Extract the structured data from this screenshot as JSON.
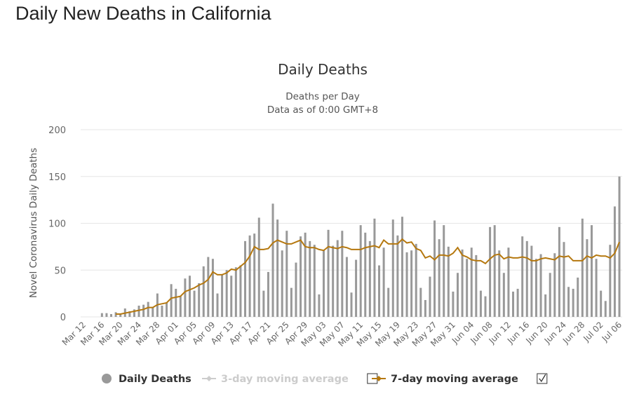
{
  "header": {
    "title": "Daily New Deaths in California"
  },
  "chart_data": {
    "type": "bar",
    "title": "Daily Deaths",
    "subtitle": [
      "Deaths per Day",
      "Data as of 0:00 GMT+8"
    ],
    "y_label": "Novel Coronavirus Daily Deaths",
    "ylim": [
      0,
      200
    ],
    "yticks": [
      0,
      50,
      100,
      150,
      200
    ],
    "grid": true,
    "categories": [
      "Mar 12",
      null,
      null,
      null,
      "Mar 16",
      null,
      null,
      null,
      "Mar 20",
      null,
      null,
      null,
      "Mar 24",
      null,
      null,
      null,
      "Mar 28",
      null,
      null,
      null,
      "Apr 01",
      null,
      null,
      null,
      "Apr 05",
      null,
      null,
      null,
      "Apr 09",
      null,
      null,
      null,
      "Apr 13",
      null,
      null,
      null,
      "Apr 17",
      null,
      null,
      null,
      "Apr 21",
      null,
      null,
      null,
      "Apr 25",
      null,
      null,
      null,
      "Apr 29",
      null,
      null,
      null,
      "May 03",
      null,
      null,
      null,
      "May 07",
      null,
      null,
      null,
      "May 11",
      null,
      null,
      null,
      "May 15",
      null,
      null,
      null,
      "May 19",
      null,
      null,
      null,
      "May 23",
      null,
      null,
      null,
      "May 27",
      null,
      null,
      null,
      "May 31",
      null,
      null,
      null,
      "Jun 04",
      null,
      null,
      null,
      "Jun 08",
      null,
      null,
      null,
      "Jun 12",
      null,
      null,
      null,
      "Jun 16",
      null,
      null,
      null,
      "Jun 20",
      null,
      null,
      null,
      "Jun 24",
      null,
      null,
      null,
      "Jun 28",
      null,
      null,
      null,
      "Jul 02",
      null,
      null,
      null,
      "Jul 06"
    ],
    "series": [
      {
        "name": "Daily Deaths",
        "type": "bar",
        "color": "#999999",
        "values": [
          0,
          0,
          0,
          0,
          4,
          4,
          3,
          5,
          3,
          9,
          6,
          8,
          12,
          13,
          16,
          10,
          25,
          12,
          15,
          35,
          30,
          22,
          41,
          44,
          28,
          36,
          54,
          64,
          62,
          25,
          45,
          50,
          44,
          53,
          55,
          81,
          87,
          89,
          106,
          28,
          48,
          121,
          104,
          71,
          92,
          31,
          58,
          86,
          90,
          81,
          77,
          24,
          71,
          93,
          76,
          82,
          92,
          64,
          26,
          61,
          98,
          90,
          81,
          105,
          55,
          74,
          31,
          104,
          87,
          107,
          69,
          71,
          78,
          31,
          18,
          43,
          103,
          83,
          98,
          75,
          27,
          47,
          72,
          62,
          74,
          66,
          28,
          22,
          96,
          98,
          71,
          47,
          74,
          27,
          30,
          86,
          81,
          76,
          62,
          67,
          24,
          47,
          68,
          96,
          80,
          32,
          30,
          42,
          105,
          83,
          98,
          62,
          28,
          17,
          77,
          118,
          150
        ]
      },
      {
        "name": "3-day moving average",
        "type": "line",
        "color": "#cccccc",
        "visible": false
      },
      {
        "name": "7-day moving average",
        "type": "line",
        "color": "#b5780f",
        "visible": true,
        "values": [
          null,
          null,
          null,
          null,
          null,
          null,
          null,
          3,
          3,
          4,
          5,
          6,
          7,
          8,
          10,
          10,
          13,
          14,
          15,
          20,
          21,
          22,
          27,
          29,
          31,
          34,
          36,
          40,
          48,
          45,
          45,
          47,
          51,
          50,
          54,
          58,
          65,
          75,
          72,
          72,
          73,
          79,
          82,
          80,
          78,
          78,
          80,
          82,
          75,
          74,
          74,
          72,
          71,
          75,
          74,
          73,
          75,
          74,
          72,
          72,
          72,
          74,
          75,
          76,
          74,
          82,
          78,
          78,
          78,
          83,
          79,
          80,
          73,
          71,
          63,
          65,
          61,
          66,
          66,
          65,
          68,
          74,
          66,
          64,
          61,
          60,
          60,
          57,
          62,
          66,
          67,
          62,
          64,
          63,
          63,
          64,
          63,
          60,
          60,
          62,
          63,
          62,
          61,
          65,
          64,
          65,
          60,
          60,
          60,
          65,
          63,
          66,
          65,
          65,
          63,
          68,
          80
        ]
      }
    ]
  }
}
